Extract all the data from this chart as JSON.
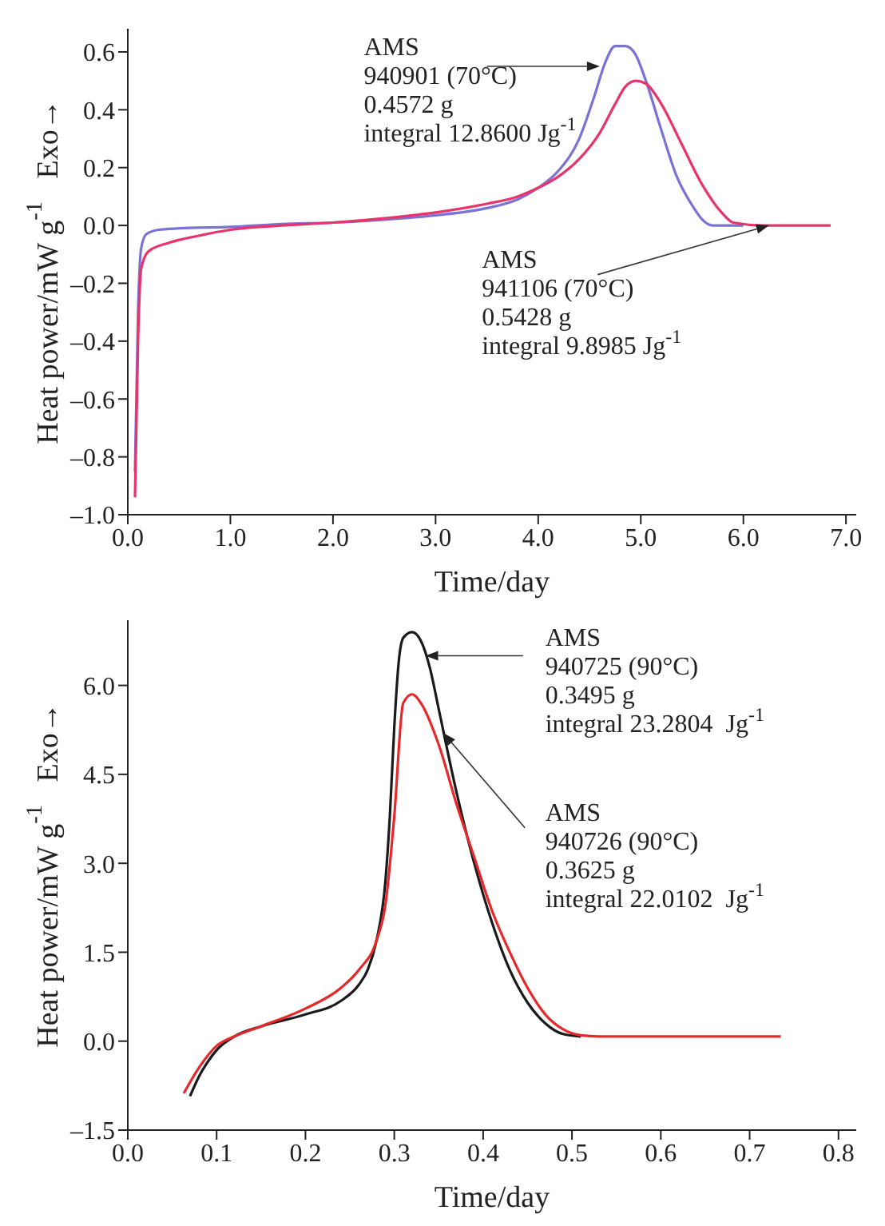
{
  "chart_data": [
    {
      "type": "line",
      "xlabel": "Time/day",
      "ylabel": "Heat power/mW g$^{-1}$   Exo→",
      "xlim": [
        0,
        7.1
      ],
      "ylim": [
        -1.0,
        0.68
      ],
      "xticks": [
        {
          "value": 0,
          "label": "0.0"
        },
        {
          "value": 1,
          "label": "1.0"
        },
        {
          "value": 2,
          "label": "2.0"
        },
        {
          "value": 3,
          "label": "3.0"
        },
        {
          "value": 4,
          "label": "4.0"
        },
        {
          "value": 5,
          "label": "5.0"
        },
        {
          "value": 6,
          "label": "6.0"
        },
        {
          "value": 7,
          "label": "7.0"
        }
      ],
      "yticks": [
        {
          "value": -1.0,
          "label": "–1.0"
        },
        {
          "value": -0.8,
          "label": "–0.8"
        },
        {
          "value": -0.6,
          "label": "–0.6"
        },
        {
          "value": -0.4,
          "label": "–0.4"
        },
        {
          "value": -0.2,
          "label": "–0.2"
        },
        {
          "value": 0,
          "label": "0.0"
        },
        {
          "value": 0.2,
          "label": "0.2"
        },
        {
          "value": 0.4,
          "label": "0.4"
        },
        {
          "value": 0.6,
          "label": "0.6"
        }
      ],
      "series": [
        {
          "color": "#7a72d4",
          "x": [
            0.07,
            0.1,
            0.13,
            0.18,
            0.3,
            0.5,
            1.0,
            1.5,
            2.0,
            2.5,
            3.0,
            3.5,
            3.8,
            4.0,
            4.2,
            4.4,
            4.55,
            4.65,
            4.75,
            4.85,
            4.95,
            5.05,
            5.2,
            5.35,
            5.5,
            5.6,
            5.7,
            5.9,
            6.0
          ],
          "values": [
            -0.85,
            -0.3,
            -0.08,
            -0.03,
            -0.015,
            -0.01,
            -0.005,
            0.005,
            0.01,
            0.02,
            0.035,
            0.06,
            0.09,
            0.13,
            0.19,
            0.3,
            0.45,
            0.56,
            0.62,
            0.62,
            0.59,
            0.5,
            0.33,
            0.17,
            0.07,
            0.02,
            0.0,
            0.0,
            0.0
          ]
        },
        {
          "color": "#e8336b",
          "x": [
            0.07,
            0.1,
            0.13,
            0.2,
            0.4,
            0.7,
            1.0,
            1.5,
            2.0,
            2.5,
            3.0,
            3.5,
            3.8,
            4.0,
            4.2,
            4.4,
            4.6,
            4.75,
            4.85,
            4.95,
            5.05,
            5.2,
            5.4,
            5.6,
            5.8,
            5.9,
            6.2,
            6.85
          ],
          "values": [
            -0.94,
            -0.4,
            -0.15,
            -0.09,
            -0.06,
            -0.035,
            -0.015,
            0.0,
            0.01,
            0.025,
            0.045,
            0.075,
            0.1,
            0.13,
            0.17,
            0.23,
            0.32,
            0.42,
            0.48,
            0.5,
            0.49,
            0.42,
            0.28,
            0.14,
            0.04,
            0.01,
            0.0,
            0.0
          ]
        }
      ],
      "annotations": [
        {
          "text": "AMS\n940901 (70°C)\n0.4572 g\nintegral 12.8600 Jg$^{-1}$",
          "x": 4.6,
          "y": 0.55
        },
        {
          "text": "AMS\n941106 (70°C)\n0.5428 g\nintegral 9.8985 Jg$^{-1}$",
          "x": 6.25,
          "y": 0.0
        }
      ]
    },
    {
      "type": "line",
      "xlabel": "Time/day",
      "ylabel": "Heat power/mW g$^{-1}$   Exo→",
      "xlim": [
        0,
        0.82
      ],
      "ylim": [
        -1.5,
        7.1
      ],
      "xticks": [
        {
          "value": 0,
          "label": "0.0"
        },
        {
          "value": 0.1,
          "label": "0.1"
        },
        {
          "value": 0.2,
          "label": "0.2"
        },
        {
          "value": 0.3,
          "label": "0.3"
        },
        {
          "value": 0.4,
          "label": "0.4"
        },
        {
          "value": 0.5,
          "label": "0.5"
        },
        {
          "value": 0.6,
          "label": "0.6"
        },
        {
          "value": 0.7,
          "label": "0.7"
        },
        {
          "value": 0.8,
          "label": "0.8"
        }
      ],
      "yticks": [
        {
          "value": -1.5,
          "label": "–1.5"
        },
        {
          "value": 0,
          "label": "0.0"
        },
        {
          "value": 1.5,
          "label": "1.5"
        },
        {
          "value": 3.0,
          "label": "3.0"
        },
        {
          "value": 4.5,
          "label": "4.5"
        },
        {
          "value": 6.0,
          "label": "6.0"
        }
      ],
      "series": [
        {
          "color": "#1a1a1a",
          "x": [
            0.07,
            0.08,
            0.09,
            0.1,
            0.12,
            0.15,
            0.2,
            0.24,
            0.26,
            0.27,
            0.28,
            0.29,
            0.295,
            0.3,
            0.305,
            0.31,
            0.32,
            0.33,
            0.34,
            0.35,
            0.37,
            0.39,
            0.41,
            0.43,
            0.45,
            0.47,
            0.49,
            0.51
          ],
          "values": [
            -0.93,
            -0.6,
            -0.35,
            -0.15,
            0.08,
            0.25,
            0.45,
            0.68,
            0.95,
            1.2,
            1.7,
            2.7,
            3.8,
            5.3,
            6.4,
            6.8,
            6.9,
            6.75,
            6.3,
            5.6,
            4.2,
            3.0,
            2.0,
            1.2,
            0.65,
            0.3,
            0.12,
            0.08
          ]
        },
        {
          "color": "#e8272a",
          "x": [
            0.063,
            0.08,
            0.1,
            0.12,
            0.15,
            0.2,
            0.24,
            0.26,
            0.28,
            0.29,
            0.3,
            0.31,
            0.32,
            0.33,
            0.35,
            0.37,
            0.39,
            0.41,
            0.43,
            0.45,
            0.47,
            0.49,
            0.51,
            0.53,
            0.6,
            0.7,
            0.735
          ],
          "values": [
            -0.88,
            -0.45,
            -0.08,
            0.08,
            0.25,
            0.55,
            0.9,
            1.2,
            1.7,
            2.3,
            3.8,
            5.7,
            5.85,
            5.7,
            5.0,
            4.0,
            3.1,
            2.2,
            1.5,
            0.9,
            0.45,
            0.2,
            0.1,
            0.08,
            0.08,
            0.08,
            0.08
          ]
        }
      ],
      "annotations": [
        {
          "text": "AMS\n940725 (90°C)\n0.3495 g\nintegral 23.2804  Jg$^{-1}$",
          "x": 0.335,
          "y": 6.5
        },
        {
          "text": "AMS\n940726 (90°C)\n0.3625 g\nintegral 22.0102  Jg$^{-1}$",
          "x": 0.355,
          "y": 5.2
        }
      ]
    }
  ]
}
